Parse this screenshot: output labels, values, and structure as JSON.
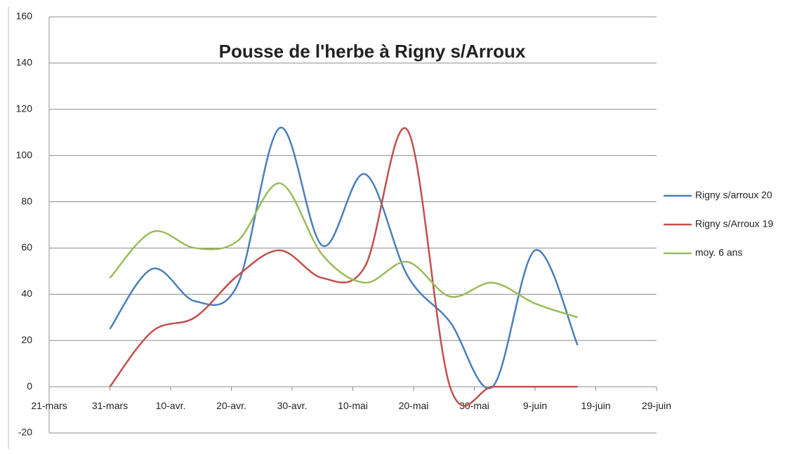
{
  "chart_data": {
    "type": "line",
    "title": "Pousse de l'herbe à Rigny s/Arroux",
    "x": [
      "03-31",
      "04-07",
      "04-14",
      "04-21",
      "04-28",
      "05-05",
      "05-12",
      "05-19",
      "05-26",
      "06-02",
      "06-09",
      "06-16"
    ],
    "series": [
      {
        "name": "Rigny s/arroux 20",
        "color": "#4a7ebb",
        "values": [
          25,
          51,
          37,
          44,
          112,
          61,
          92,
          48,
          28,
          0,
          59,
          18
        ]
      },
      {
        "name": "Rigny s/Arroux 19",
        "color": "#c0504d",
        "values": [
          0,
          24,
          30,
          48,
          59,
          47,
          52,
          111,
          0,
          0,
          0,
          0
        ]
      },
      {
        "name": "moy. 6 ans",
        "color": "#9bbb59",
        "values": [
          47,
          67,
          60,
          63,
          88,
          57,
          45,
          54,
          39,
          45,
          36,
          30
        ]
      }
    ],
    "xlim": [
      "03-21",
      "06-29"
    ],
    "xticks": [
      {
        "value": "03-21",
        "label": "21-mars"
      },
      {
        "value": "03-31",
        "label": "31-mars"
      },
      {
        "value": "04-10",
        "label": "10-avr."
      },
      {
        "value": "04-20",
        "label": "20-avr."
      },
      {
        "value": "04-30",
        "label": "30-avr."
      },
      {
        "value": "05-10",
        "label": "10-mai"
      },
      {
        "value": "05-20",
        "label": "20-mai"
      },
      {
        "value": "05-30",
        "label": "30-mai"
      },
      {
        "value": "06-09",
        "label": "9-juin"
      },
      {
        "value": "06-19",
        "label": "19-juin"
      },
      {
        "value": "06-29",
        "label": "29-juin"
      }
    ],
    "ylim": [
      -20,
      160
    ],
    "yticks": [
      -20,
      0,
      20,
      40,
      60,
      80,
      100,
      120,
      140,
      160
    ],
    "grid": true,
    "legend": "right",
    "smooth": true
  }
}
